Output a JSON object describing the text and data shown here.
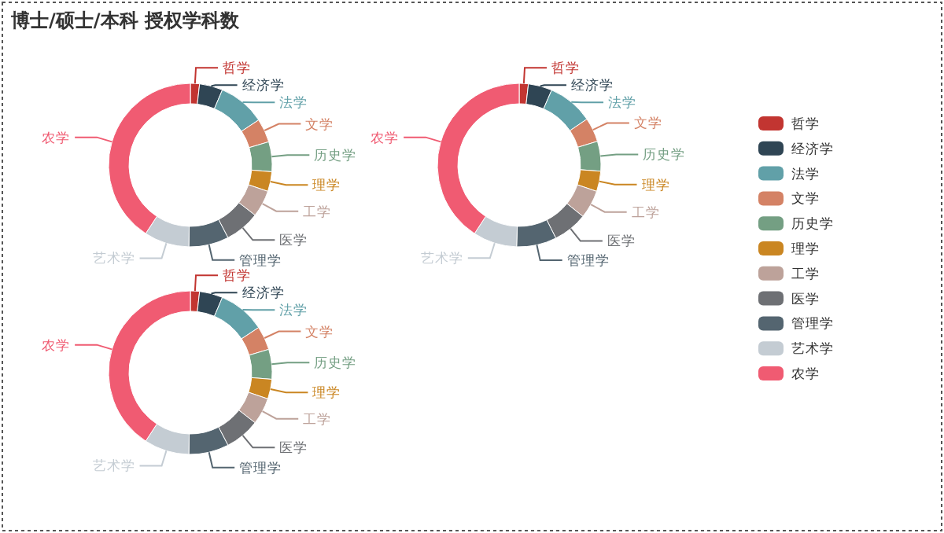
{
  "chart_data": [
    {
      "type": "donut",
      "title": "博士/硕士/本科 授权学科数",
      "legend": "right",
      "categories": [
        "哲学",
        "经济学",
        "法学",
        "文学",
        "历史学",
        "理学",
        "工学",
        "医学",
        "管理学",
        "艺术学",
        "农学"
      ],
      "values": [
        1.8,
        4.6,
        9.3,
        4.7,
        5.9,
        3.9,
        5.3,
        6.9,
        7.9,
        8.9,
        40.8
      ],
      "colors": [
        "#c23531",
        "#2f4554",
        "#61a0a8",
        "#d48265",
        "#749f83",
        "#ca8622",
        "#bda29a",
        "#6e7074",
        "#546570",
        "#c4ccd3",
        "#f05b72"
      ]
    },
    {
      "type": "donut",
      "categories": [
        "哲学",
        "经济学",
        "法学",
        "文学",
        "历史学",
        "理学",
        "工学",
        "医学",
        "管理学",
        "艺术学",
        "农学"
      ],
      "values": [
        1.8,
        4.7,
        9.0,
        4.8,
        5.9,
        4.0,
        5.6,
        6.8,
        7.9,
        8.7,
        40.8
      ],
      "colors": [
        "#c23531",
        "#2f4554",
        "#61a0a8",
        "#d48265",
        "#749f83",
        "#ca8622",
        "#bda29a",
        "#6e7074",
        "#546570",
        "#c4ccd3",
        "#f05b72"
      ]
    },
    {
      "type": "donut",
      "categories": [
        "哲学",
        "经济学",
        "法学",
        "文学",
        "历史学",
        "理学",
        "工学",
        "医学",
        "管理学",
        "艺术学",
        "农学"
      ],
      "values": [
        1.8,
        4.6,
        9.3,
        4.7,
        5.9,
        3.9,
        5.3,
        6.9,
        7.9,
        8.9,
        40.8
      ],
      "colors": [
        "#c23531",
        "#2f4554",
        "#61a0a8",
        "#d48265",
        "#749f83",
        "#ca8622",
        "#bda29a",
        "#6e7074",
        "#546570",
        "#c4ccd3",
        "#f05b72"
      ]
    }
  ]
}
